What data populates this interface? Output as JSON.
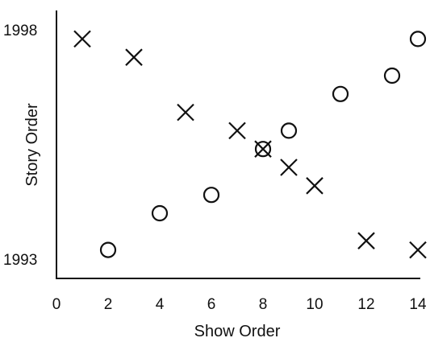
{
  "chart_data": {
    "type": "scatter",
    "xlabel": "Show Order",
    "ylabel": "Story Order",
    "xlim": [
      0,
      14
    ],
    "ylim": [
      1993,
      1998
    ],
    "x_ticks": [
      "0",
      "2",
      "4",
      "6",
      "8",
      "10",
      "12",
      "14"
    ],
    "y_ticks": [
      "1993",
      "1998"
    ],
    "grid": false,
    "series": [
      {
        "marker": "x",
        "points": [
          {
            "x": 1,
            "y": 1997.8
          },
          {
            "x": 3,
            "y": 1997.4
          },
          {
            "x": 5,
            "y": 1996.2
          },
          {
            "x": 7,
            "y": 1995.8
          },
          {
            "x": 8,
            "y": 1995.4
          },
          {
            "x": 9,
            "y": 1995.0
          },
          {
            "x": 10,
            "y": 1994.6
          },
          {
            "x": 12,
            "y": 1993.4
          },
          {
            "x": 14,
            "y": 1993.2
          }
        ]
      },
      {
        "marker": "o",
        "points": [
          {
            "x": 2,
            "y": 1993.2
          },
          {
            "x": 4,
            "y": 1994.0
          },
          {
            "x": 6,
            "y": 1994.4
          },
          {
            "x": 8,
            "y": 1995.4
          },
          {
            "x": 9,
            "y": 1995.8
          },
          {
            "x": 11,
            "y": 1996.6
          },
          {
            "x": 13,
            "y": 1997.0
          },
          {
            "x": 14,
            "y": 1997.8
          }
        ]
      }
    ]
  }
}
